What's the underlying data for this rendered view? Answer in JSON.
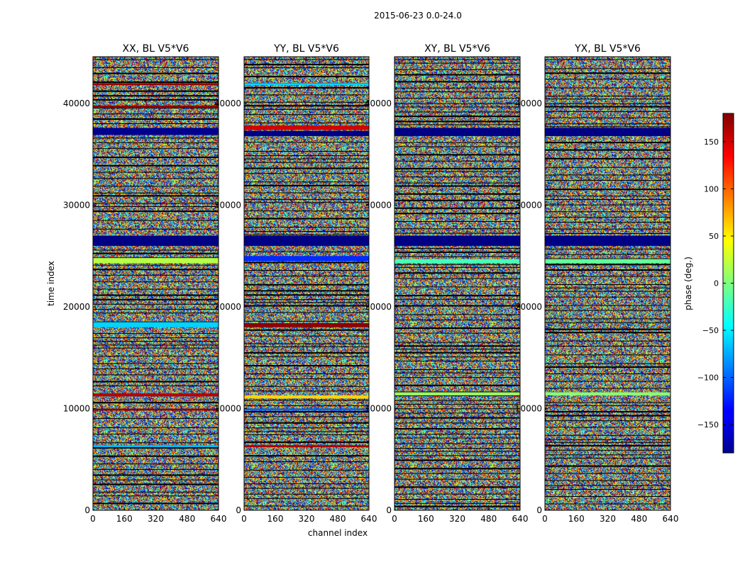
{
  "chart_data": {
    "type": "heatmap",
    "suptitle": "2015-06-23 0.0-24.0",
    "xlabel": "channel index",
    "ylabel": "time index",
    "xlim": [
      0,
      640
    ],
    "ylim": [
      0,
      44600
    ],
    "x_ticks": [
      0,
      160,
      320,
      480,
      640
    ],
    "x_tick_labels": [
      "0",
      "160",
      "320",
      "480",
      "640"
    ],
    "y_ticks": [
      0,
      10000,
      20000,
      30000,
      40000
    ],
    "y_tick_labels": [
      "0",
      "10000",
      "20000",
      "30000",
      "40000"
    ],
    "colorbar": {
      "label": "phase (deg.)",
      "range": [
        -180,
        180
      ],
      "colormap": "jet",
      "ticks": [
        -150,
        -100,
        -50,
        0,
        50,
        100,
        150
      ],
      "tick_labels": [
        "−150",
        "−100",
        "−50",
        "0",
        "50",
        "100",
        "150"
      ]
    },
    "panels": [
      {
        "title": "XX, BL V5*V6",
        "bands": [
          {
            "y0": 36900,
            "y1": 37600,
            "phase": -175
          },
          {
            "y0": 26000,
            "y1": 27000,
            "phase": -178
          },
          {
            "y0": 18000,
            "y1": 18500,
            "phase": -60
          },
          {
            "y0": 24300,
            "y1": 24800,
            "phase": 20
          },
          {
            "y0": 11200,
            "y1": 11500,
            "phase": 160
          },
          {
            "y0": 9800,
            "y1": 10000,
            "phase": 175
          },
          {
            "y0": 6200,
            "y1": 6400,
            "phase": -70
          },
          {
            "y0": 41800,
            "y1": 42000,
            "phase": 170
          },
          {
            "y0": 39600,
            "y1": 39800,
            "phase": 175
          }
        ]
      },
      {
        "title": "YY, BL V5*V6",
        "bands": [
          {
            "y0": 37400,
            "y1": 37800,
            "phase": 150
          },
          {
            "y0": 36800,
            "y1": 37300,
            "phase": -178
          },
          {
            "y0": 26000,
            "y1": 27000,
            "phase": -178
          },
          {
            "y0": 24500,
            "y1": 25000,
            "phase": -120
          },
          {
            "y0": 18000,
            "y1": 18400,
            "phase": 175
          },
          {
            "y0": 11000,
            "y1": 11300,
            "phase": 60
          },
          {
            "y0": 9800,
            "y1": 10000,
            "phase": -100
          },
          {
            "y0": 6200,
            "y1": 6400,
            "phase": 165
          },
          {
            "y0": 41800,
            "y1": 42000,
            "phase": -60
          }
        ]
      },
      {
        "title": "XY, BL V5*V6",
        "bands": [
          {
            "y0": 36800,
            "y1": 37600,
            "phase": -178
          },
          {
            "y0": 26000,
            "y1": 27000,
            "phase": -178
          },
          {
            "y0": 24300,
            "y1": 24700,
            "phase": -20
          },
          {
            "y0": 11300,
            "y1": 11600,
            "phase": 10
          }
        ]
      },
      {
        "title": "YX, BL V5*V6",
        "bands": [
          {
            "y0": 36800,
            "y1": 37600,
            "phase": -178
          },
          {
            "y0": 26000,
            "y1": 27000,
            "phase": -178
          },
          {
            "y0": 24300,
            "y1": 24700,
            "phase": -10
          },
          {
            "y0": 11300,
            "y1": 11600,
            "phase": 5
          }
        ]
      }
    ]
  }
}
